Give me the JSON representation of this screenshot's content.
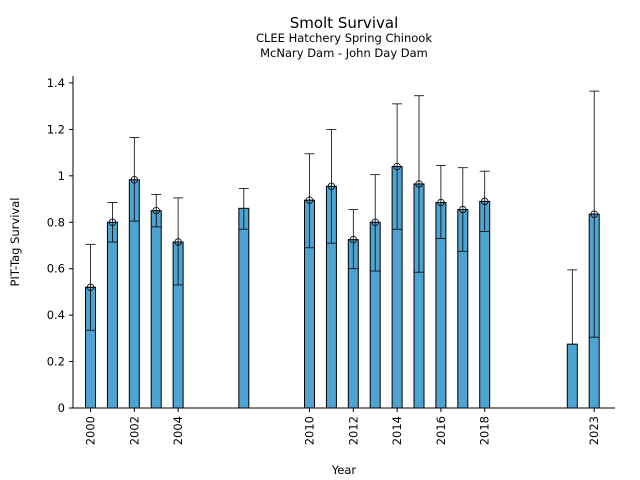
{
  "chart_data": {
    "type": "bar",
    "title": "Smolt Survival",
    "subtitle_lines": [
      "CLEE Hatchery Spring Chinook",
      "McNary Dam - John Day Dam"
    ],
    "xlabel": "Year",
    "ylabel": "PIT-Tag Survival",
    "ylim": [
      0,
      1.43
    ],
    "xlim": [
      1999.2,
      2023.95
    ],
    "yticks": [
      0,
      0.2,
      0.4,
      0.6,
      0.8,
      1,
      1.2,
      1.4
    ],
    "ytick_labels": [
      "0",
      "0.2",
      "0.4",
      "0.6",
      "0.8",
      "1",
      "1.2",
      "1.4"
    ],
    "xticks": [
      2000,
      2002,
      2004,
      2010,
      2012,
      2014,
      2016,
      2018,
      2023
    ],
    "xtick_labels": [
      "2000",
      "2002",
      "2004",
      "2010",
      "2012",
      "2014",
      "2016",
      "2018",
      "2023"
    ],
    "bar_color": "#4fa3d1",
    "grid": false,
    "legend": "none",
    "points": [
      {
        "year": 2000,
        "value": 0.52,
        "lower": 0.335,
        "upper": 0.705,
        "marker": true
      },
      {
        "year": 2001,
        "value": 0.8,
        "lower": 0.715,
        "upper": 0.885,
        "marker": true
      },
      {
        "year": 2002,
        "value": 0.983,
        "lower": 0.805,
        "upper": 1.165,
        "marker": true
      },
      {
        "year": 2003,
        "value": 0.85,
        "lower": 0.78,
        "upper": 0.92,
        "marker": true
      },
      {
        "year": 2004,
        "value": 0.715,
        "lower": 0.53,
        "upper": 0.905,
        "marker": true
      },
      {
        "year": 2007,
        "value": 0.86,
        "lower": 0.77,
        "upper": 0.945,
        "marker": false
      },
      {
        "year": 2010,
        "value": 0.895,
        "lower": 0.69,
        "upper": 1.095,
        "marker": true
      },
      {
        "year": 2011,
        "value": 0.955,
        "lower": 0.71,
        "upper": 1.2,
        "marker": true
      },
      {
        "year": 2012,
        "value": 0.725,
        "lower": 0.6,
        "upper": 0.855,
        "marker": true
      },
      {
        "year": 2013,
        "value": 0.8,
        "lower": 0.59,
        "upper": 1.005,
        "marker": true
      },
      {
        "year": 2014,
        "value": 1.04,
        "lower": 0.77,
        "upper": 1.31,
        "marker": true
      },
      {
        "year": 2015,
        "value": 0.965,
        "lower": 0.585,
        "upper": 1.345,
        "marker": true
      },
      {
        "year": 2016,
        "value": 0.885,
        "lower": 0.73,
        "upper": 1.045,
        "marker": true
      },
      {
        "year": 2017,
        "value": 0.855,
        "lower": 0.675,
        "upper": 1.035,
        "marker": true
      },
      {
        "year": 2018,
        "value": 0.89,
        "lower": 0.76,
        "upper": 1.02,
        "marker": true
      },
      {
        "year": 2022,
        "value": 0.275,
        "lower": null,
        "upper": 0.595,
        "marker": false
      },
      {
        "year": 2023,
        "value": 0.835,
        "lower": 0.305,
        "upper": 1.365,
        "marker": true
      }
    ]
  }
}
